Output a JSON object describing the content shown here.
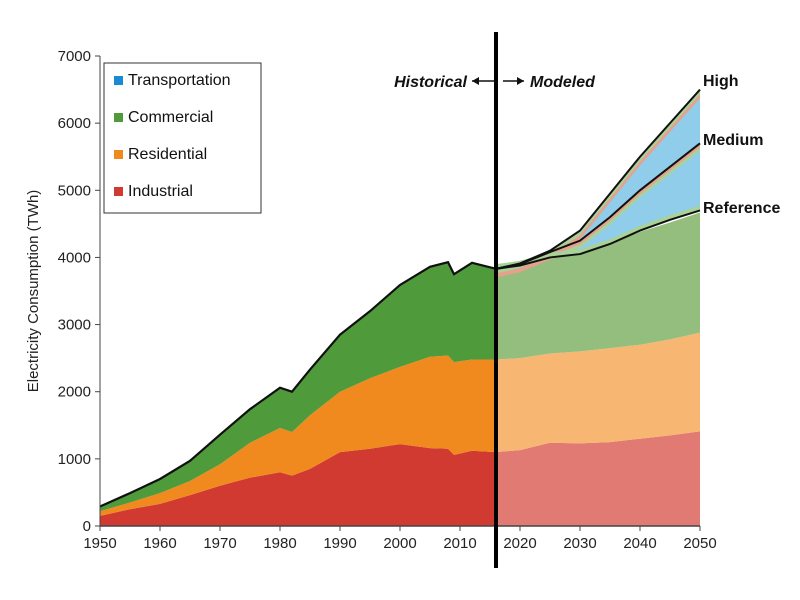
{
  "chart_data": {
    "type": "area",
    "ylabel": "Electricity Consumption (TWh)",
    "xlim": [
      1950,
      2050
    ],
    "ylim": [
      0,
      7000
    ],
    "x_ticks": [
      "1950",
      "1960",
      "1970",
      "1980",
      "1990",
      "2000",
      "2010",
      "2020",
      "2030",
      "2040",
      "2050"
    ],
    "y_ticks": [
      "0",
      "1000",
      "2000",
      "3000",
      "4000",
      "5000",
      "6000",
      "7000"
    ],
    "divider_year": 2016,
    "annotations": {
      "historical": "Historical",
      "modeled": "Modeled"
    },
    "legend": {
      "placement": "top-left",
      "entries": [
        {
          "name": "Transportation",
          "color": "#1a8ad4"
        },
        {
          "name": "Commercial",
          "color": "#4f9a3a"
        },
        {
          "name": "Residential",
          "color": "#f08a1e"
        },
        {
          "name": "Industrial",
          "color": "#d13a30"
        }
      ]
    },
    "series": [
      {
        "name": "Industrial",
        "color": "#d13a30",
        "modeled_color": "#e07a72",
        "x": [
          1950,
          1955,
          1960,
          1965,
          1970,
          1975,
          1980,
          1982,
          1985,
          1990,
          1995,
          2000,
          2005,
          2008,
          2009,
          2012,
          2016,
          2020,
          2025,
          2030,
          2035,
          2040,
          2045,
          2050
        ],
        "y": [
          150,
          250,
          330,
          460,
          600,
          720,
          800,
          750,
          850,
          1100,
          1150,
          1220,
          1160,
          1150,
          1060,
          1120,
          1100,
          1130,
          1240,
          1230,
          1250,
          1300,
          1350,
          1410
        ]
      },
      {
        "name": "Residential",
        "color": "#f08a1e",
        "modeled_color": "#f8b673",
        "x": [
          1950,
          1955,
          1960,
          1965,
          1970,
          1975,
          1980,
          1982,
          1985,
          1990,
          1995,
          2000,
          2005,
          2008,
          2009,
          2012,
          2016,
          2020,
          2025,
          2030,
          2035,
          2040,
          2045,
          2050
        ],
        "y": [
          220,
          350,
          490,
          670,
          920,
          1240,
          1460,
          1400,
          1650,
          2000,
          2200,
          2370,
          2520,
          2540,
          2440,
          2480,
          2480,
          2500,
          2570,
          2600,
          2650,
          2700,
          2780,
          2880
        ]
      },
      {
        "name": "Commercial",
        "color": "#4f9a3a",
        "modeled_color": "#93be7e",
        "x": [
          1950,
          1955,
          1960,
          1965,
          1970,
          1975,
          1980,
          1982,
          1985,
          1990,
          1995,
          2000,
          2005,
          2008,
          2009,
          2012,
          2016,
          2020,
          2025,
          2030,
          2035,
          2040,
          2045,
          2050
        ],
        "y": [
          290,
          490,
          700,
          970,
          1360,
          1740,
          2060,
          2000,
          2330,
          2850,
          3200,
          3590,
          3860,
          3930,
          3750,
          3920,
          3830,
          3880,
          4000,
          4050,
          4200,
          4380,
          4520,
          4670
        ]
      }
    ],
    "scenarios": [
      {
        "name": "Reference",
        "x": [
          2016,
          2020,
          2025,
          2030,
          2035,
          2040,
          2045,
          2050
        ],
        "y": [
          3830,
          3880,
          4000,
          4050,
          4200,
          4400,
          4560,
          4700
        ]
      },
      {
        "name": "Medium",
        "x": [
          2016,
          2020,
          2025,
          2030,
          2035,
          2040,
          2045,
          2050
        ],
        "y": [
          3830,
          3900,
          4080,
          4250,
          4600,
          5000,
          5350,
          5700
        ]
      },
      {
        "name": "High",
        "x": [
          2016,
          2020,
          2025,
          2030,
          2035,
          2040,
          2045,
          2050
        ],
        "y": [
          3830,
          3910,
          4100,
          4400,
          4950,
          5500,
          6000,
          6500
        ]
      }
    ]
  }
}
